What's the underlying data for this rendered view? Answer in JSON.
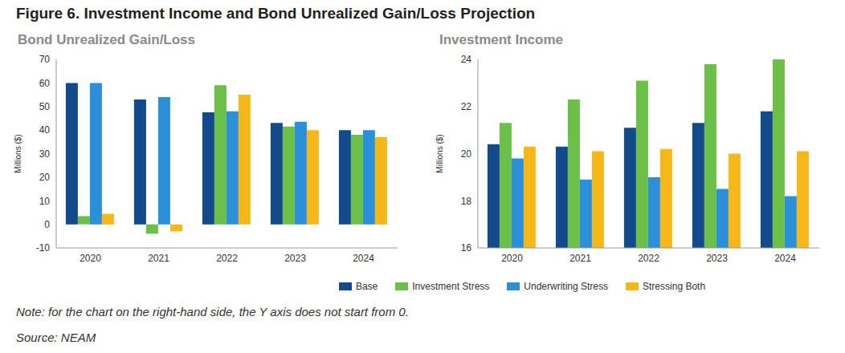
{
  "title": "Figure 6. Investment Income and Bond Unrealized Gain/Loss Projection",
  "chart_data": [
    {
      "type": "bar",
      "title": "Bond Unrealized Gain/Loss",
      "y_label": "Millions ($)",
      "categories": [
        "2020",
        "2021",
        "2022",
        "2023",
        "2024"
      ],
      "series": [
        {
          "name": "Base",
          "color": "#124a8c",
          "values": [
            60,
            53,
            47.5,
            43,
            40
          ]
        },
        {
          "name": "Investment Stress",
          "color": "#6cc04a",
          "values": [
            3.5,
            -4,
            59,
            41.5,
            38
          ]
        },
        {
          "name": "Underwriting Stress",
          "color": "#2b8fd9",
          "values": [
            60,
            54,
            48,
            43.5,
            40
          ]
        },
        {
          "name": "Stressing Both",
          "color": "#f5b818",
          "values": [
            4.5,
            -3,
            55,
            40,
            37
          ]
        }
      ],
      "ylim": [
        -10,
        70
      ],
      "yticks": [
        -10,
        0,
        10,
        20,
        30,
        40,
        50,
        60,
        70
      ],
      "grid": false
    },
    {
      "type": "bar",
      "title": "Investment Income",
      "y_label": "Millions ($)",
      "categories": [
        "2020",
        "2021",
        "2022",
        "2023",
        "2024"
      ],
      "series": [
        {
          "name": "Base",
          "color": "#124a8c",
          "values": [
            20.4,
            20.3,
            21.1,
            21.3,
            21.8
          ]
        },
        {
          "name": "Investment Stress",
          "color": "#6cc04a",
          "values": [
            21.3,
            22.3,
            23.1,
            23.8,
            24
          ]
        },
        {
          "name": "Underwriting Stress",
          "color": "#2b8fd9",
          "values": [
            19.8,
            18.9,
            19,
            18.5,
            18.2
          ]
        },
        {
          "name": "Stressing Both",
          "color": "#f5b818",
          "values": [
            20.3,
            20.1,
            20.2,
            20,
            20.1
          ]
        }
      ],
      "ylim": [
        16,
        24
      ],
      "yticks": [
        16,
        18,
        20,
        22,
        24
      ],
      "grid": false
    }
  ],
  "note": "Note: for the chart on the right-hand side, the Y axis does not start from 0.",
  "source": "Source: NEAM"
}
